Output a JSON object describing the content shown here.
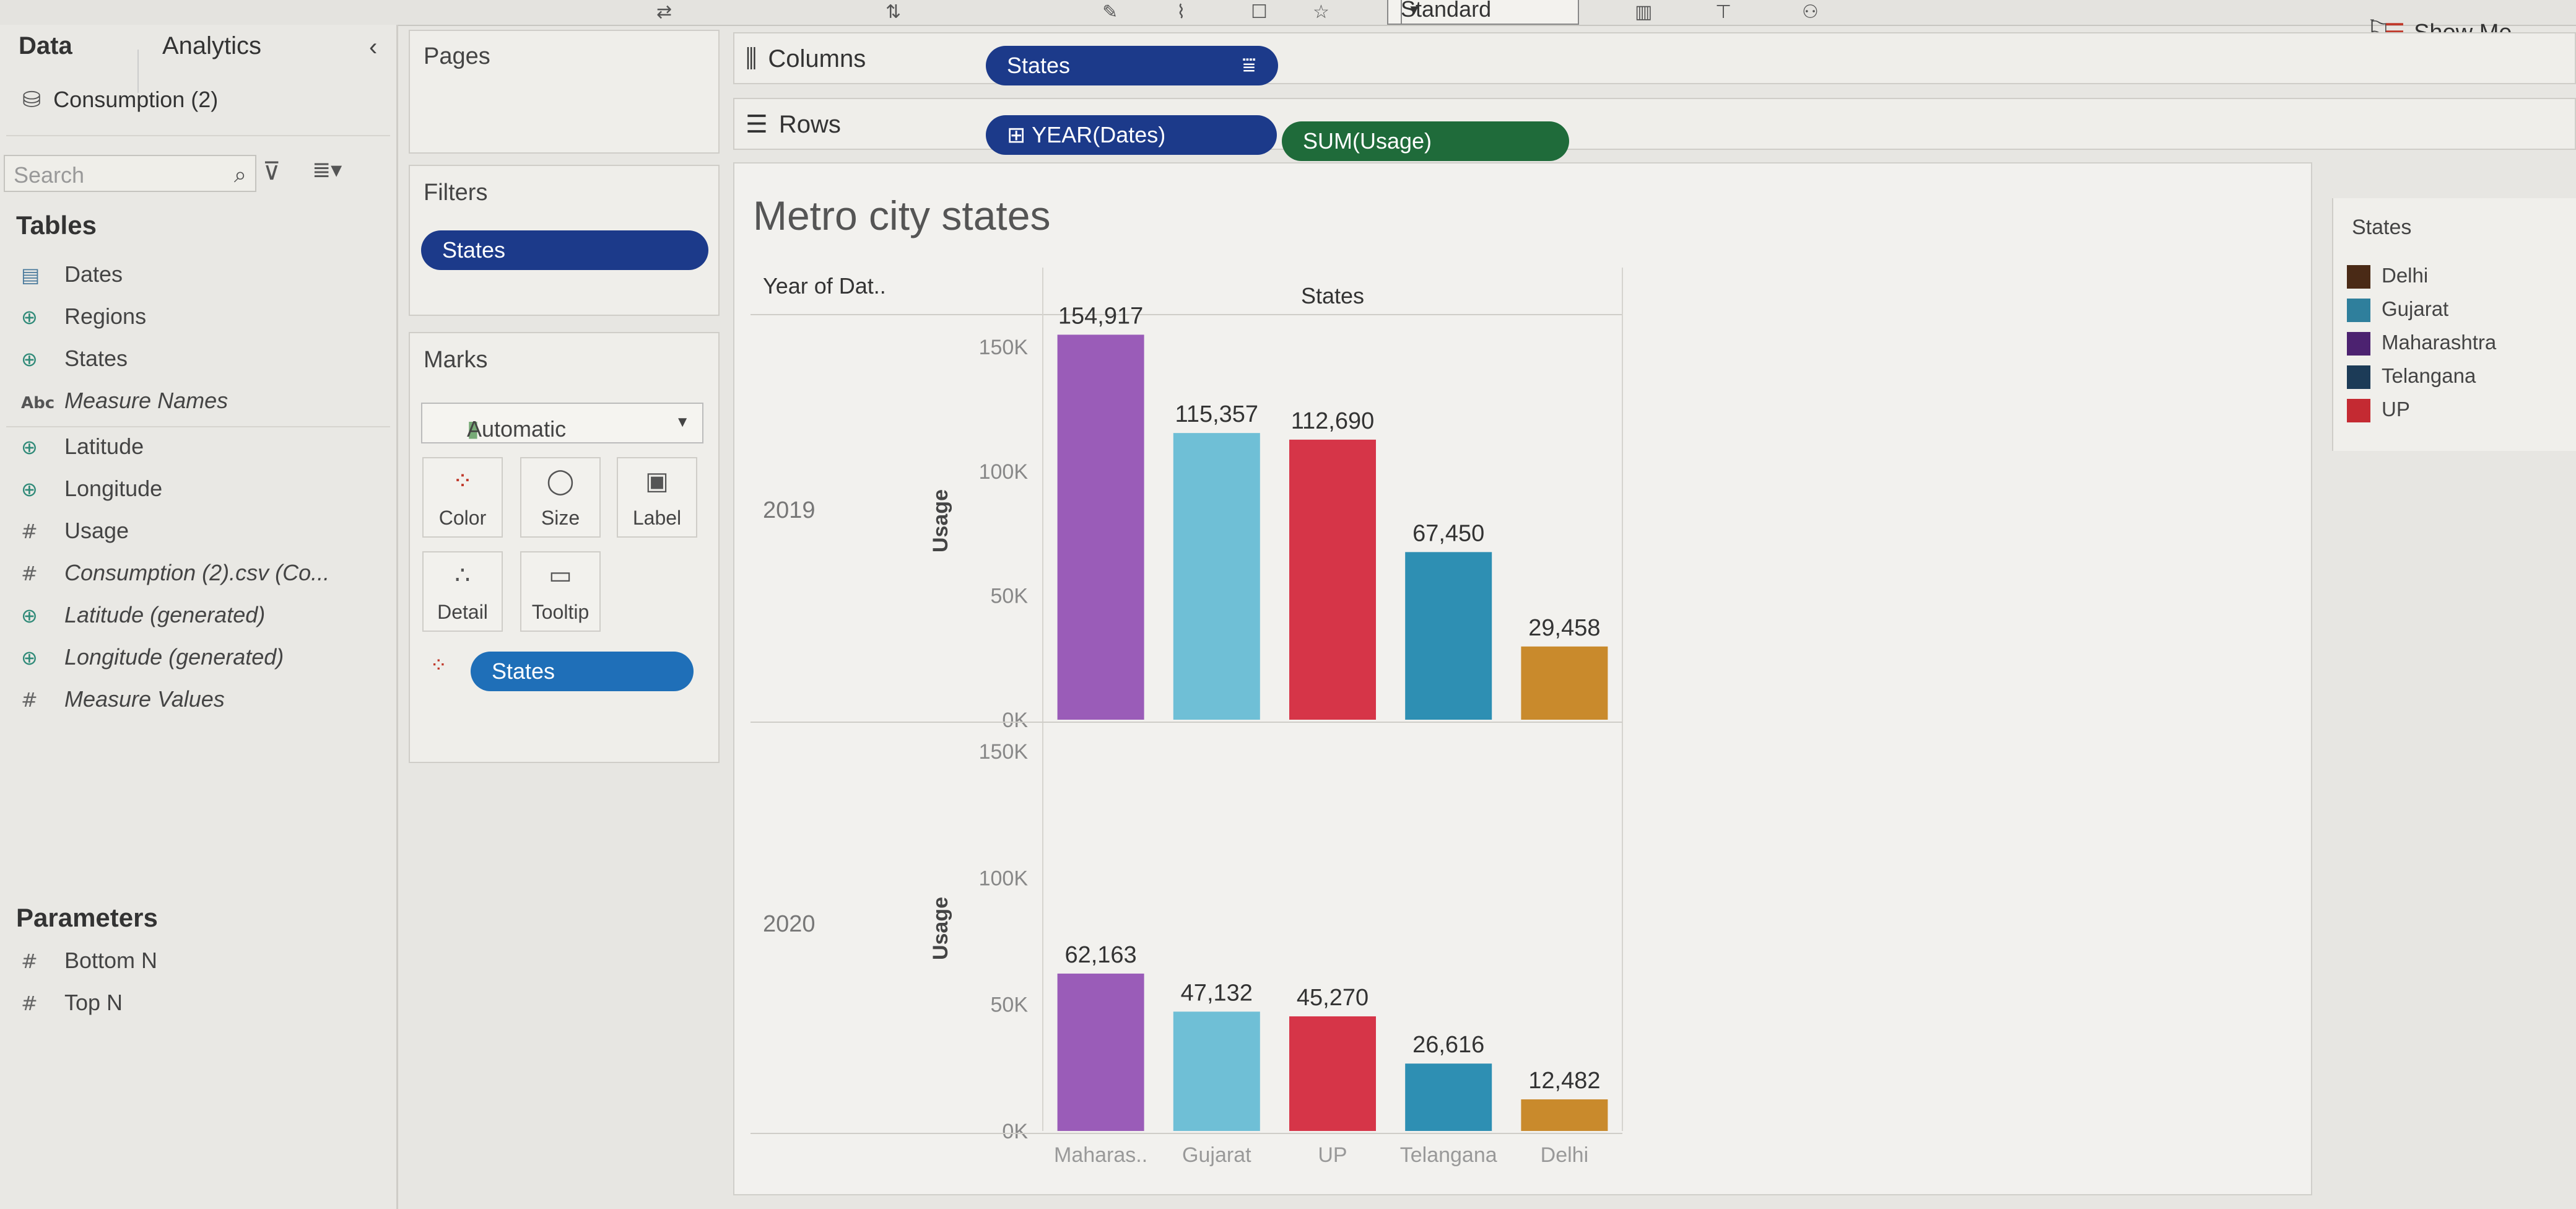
{
  "toolbar": {
    "fit_mode": "Standard",
    "show_me": "Show Me"
  },
  "data_pane": {
    "tabs": [
      "Data",
      "Analytics"
    ],
    "datasource": "Consumption (2)",
    "search_placeholder": "Search",
    "tables_heading": "Tables",
    "fields": [
      {
        "name": "Dates",
        "type": "date",
        "italic": false
      },
      {
        "name": "Regions",
        "type": "geo",
        "italic": false
      },
      {
        "name": "States",
        "type": "geo",
        "italic": false
      },
      {
        "name": "Measure Names",
        "type": "abc",
        "italic": true
      },
      {
        "name": "Latitude",
        "type": "geo",
        "italic": false
      },
      {
        "name": "Longitude",
        "type": "geo",
        "italic": false
      },
      {
        "name": "Usage",
        "type": "measure",
        "italic": false
      },
      {
        "name": "Consumption (2).csv (Co...",
        "type": "measure",
        "italic": true
      },
      {
        "name": "Latitude (generated)",
        "type": "geo",
        "italic": true
      },
      {
        "name": "Longitude (generated)",
        "type": "geo",
        "italic": true
      },
      {
        "name": "Measure Values",
        "type": "measure",
        "italic": true
      }
    ],
    "parameters_heading": "Parameters",
    "parameters": [
      "Bottom N",
      "Top N"
    ]
  },
  "pages": {
    "title": "Pages"
  },
  "filters": {
    "title": "Filters",
    "pill": "States"
  },
  "marks": {
    "title": "Marks",
    "type": "Automatic",
    "buttons": [
      "Color",
      "Size",
      "Label",
      "Detail",
      "Tooltip"
    ],
    "color_pill": "States"
  },
  "columns": {
    "label": "Columns",
    "pill": "States"
  },
  "rows": {
    "label": "Rows",
    "pills": [
      "YEAR(Dates)",
      "SUM(Usage)"
    ]
  },
  "legend": {
    "title": "States",
    "items": [
      {
        "name": "Delhi",
        "color": "#4a2a16"
      },
      {
        "name": "Gujarat",
        "color": "#2f7f9c"
      },
      {
        "name": "Maharashtra",
        "color": "#4c2270"
      },
      {
        "name": "Telangana",
        "color": "#1c3b57"
      },
      {
        "name": "UP",
        "color": "#c42a32"
      }
    ]
  },
  "chart_data": {
    "type": "bar",
    "title": "Metro city states",
    "column_header": "States",
    "row_header": "Year of Dat..",
    "ylabel": "Usage",
    "ylim": [
      0,
      160000
    ],
    "yticks": [
      "0K",
      "50K",
      "100K",
      "150K"
    ],
    "categories": [
      "Maharas..",
      "Gujarat",
      "UP",
      "Telangana",
      "Delhi"
    ],
    "bar_colors": [
      "#9a5cb8",
      "#6fbfd6",
      "#d63548",
      "#2e8fb3",
      "#c98a2c"
    ],
    "panels": [
      {
        "year": "2019",
        "values": [
          154917,
          115357,
          112690,
          67450,
          29458
        ],
        "labels": [
          "154,917",
          "115,357",
          "112,690",
          "67,450",
          "29,458"
        ]
      },
      {
        "year": "2020",
        "values": [
          62163,
          47132,
          45270,
          26616,
          12482
        ],
        "labels": [
          "62,163",
          "47,132",
          "45,270",
          "26,616",
          "12,482"
        ]
      }
    ]
  }
}
